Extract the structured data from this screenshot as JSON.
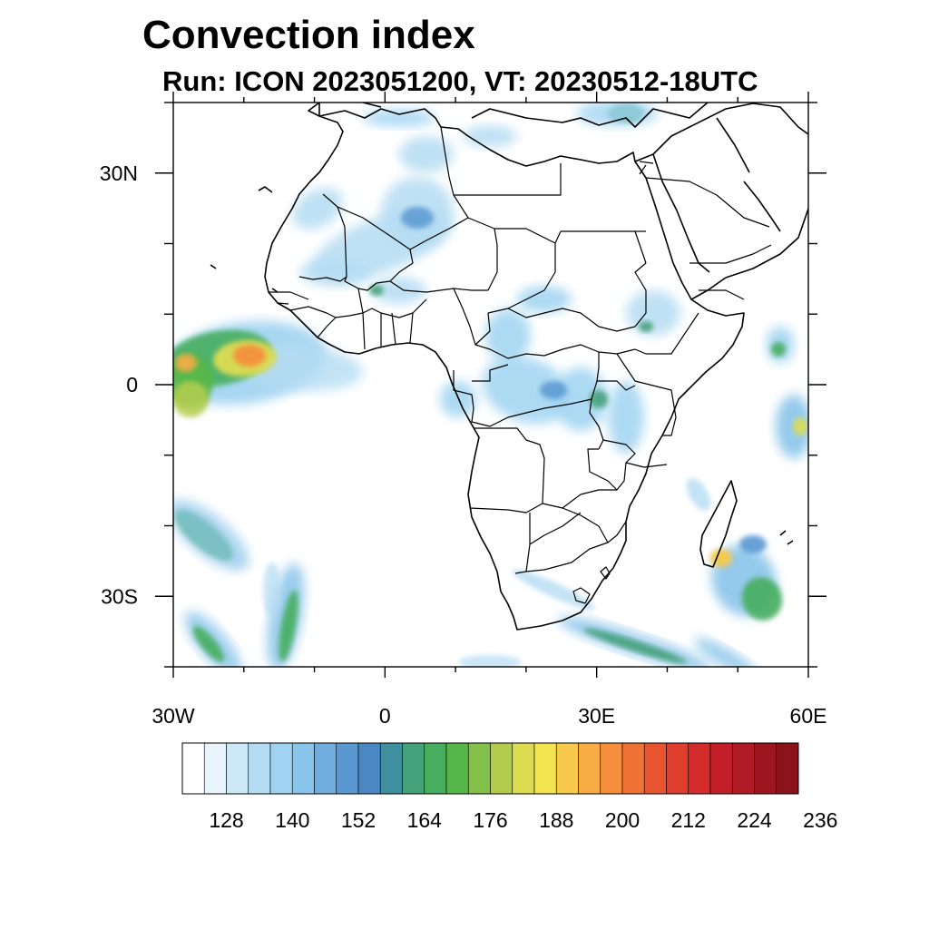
{
  "title": "Convection index",
  "subtitle": "Run: ICON 2023051200,  VT: 20230512-18UTC",
  "map": {
    "lon_range": [
      -30,
      60
    ],
    "lat_range": [
      -40,
      40
    ],
    "lon_ticks": [
      {
        "value": -30,
        "label": "30W"
      },
      {
        "value": 0,
        "label": "0"
      },
      {
        "value": 30,
        "label": "30E"
      },
      {
        "value": 60,
        "label": "60E"
      }
    ],
    "lat_ticks": [
      {
        "value": 30,
        "label": "30N"
      },
      {
        "value": 0,
        "label": "0"
      },
      {
        "value": -30,
        "label": "30S"
      }
    ],
    "coastlines": "black",
    "country_borders": "black"
  },
  "colorbar": {
    "labels": [
      "128",
      "140",
      "152",
      "164",
      "176",
      "188",
      "200",
      "212",
      "224",
      "236"
    ],
    "colors": [
      "#ffffff",
      "#e8f4fb",
      "#cde8f6",
      "#b4dcf2",
      "#9fd3f1",
      "#89c4ea",
      "#70addf",
      "#5a98d2",
      "#4a87c3",
      "#3f8f9f",
      "#45a17a",
      "#47ae5e",
      "#55b748",
      "#82c04a",
      "#b4cc4c",
      "#dcdc52",
      "#f2e34f",
      "#f7c94a",
      "#f7ac45",
      "#f58f3d",
      "#ef7134",
      "#e8552f",
      "#e03e2c",
      "#d42b2b",
      "#c31f29",
      "#b01a25",
      "#9c1620",
      "#8a131c"
    ]
  },
  "convection_areas": [
    {
      "name": "tropical-atlantic-band",
      "intensity": "high",
      "peak": "orange-red"
    },
    {
      "name": "west-africa-sahel",
      "intensity": "low"
    },
    {
      "name": "central-africa-congo",
      "intensity": "low-moderate"
    },
    {
      "name": "east-africa-highlands",
      "intensity": "low-moderate"
    },
    {
      "name": "madagascar-east",
      "intensity": "moderate",
      "peak": "yellow-orange"
    },
    {
      "name": "south-atlantic-band",
      "intensity": "moderate"
    },
    {
      "name": "south-africa-coast-band",
      "intensity": "low-moderate"
    },
    {
      "name": "indian-ocean-east",
      "intensity": "moderate"
    }
  ]
}
